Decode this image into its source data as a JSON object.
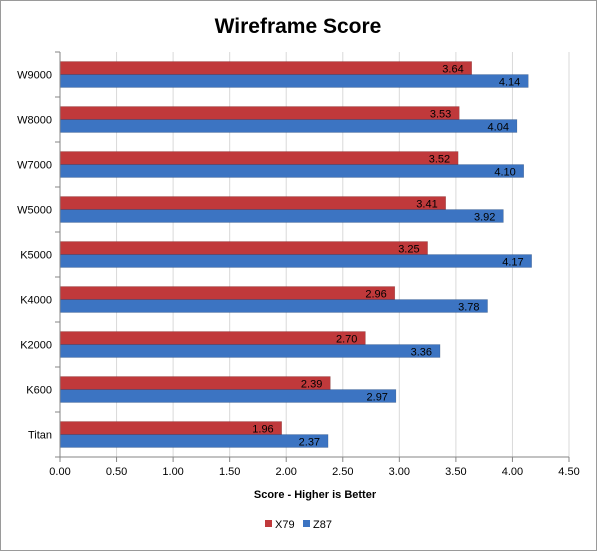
{
  "chart_data": {
    "type": "bar",
    "orientation": "horizontal",
    "title": "Wireframe Score",
    "xlabel": "Score - Higher is Better",
    "ylabel": "",
    "categories": [
      "W9000",
      "W8000",
      "W7000",
      "W5000",
      "K5000",
      "K4000",
      "K2000",
      "K600",
      "Titan"
    ],
    "series": [
      {
        "name": "X79",
        "color": "#c0393b",
        "values": [
          3.64,
          3.53,
          3.52,
          3.41,
          3.25,
          2.96,
          2.7,
          2.39,
          1.96
        ]
      },
      {
        "name": "Z87",
        "color": "#3c74c2",
        "values": [
          4.14,
          4.04,
          4.1,
          3.92,
          4.17,
          3.78,
          3.36,
          2.97,
          2.37
        ]
      }
    ],
    "xlim": [
      0,
      4.5
    ],
    "xticks": [
      0,
      0.5,
      1.0,
      1.5,
      2.0,
      2.5,
      3.0,
      3.5,
      4.0,
      4.5
    ],
    "tick_labels": [
      "0.00",
      "0.50",
      "1.00",
      "1.50",
      "2.00",
      "2.50",
      "3.00",
      "3.50",
      "4.00",
      "4.50"
    ],
    "value_decimals": 2,
    "grid": true,
    "legend_position": "bottom"
  }
}
